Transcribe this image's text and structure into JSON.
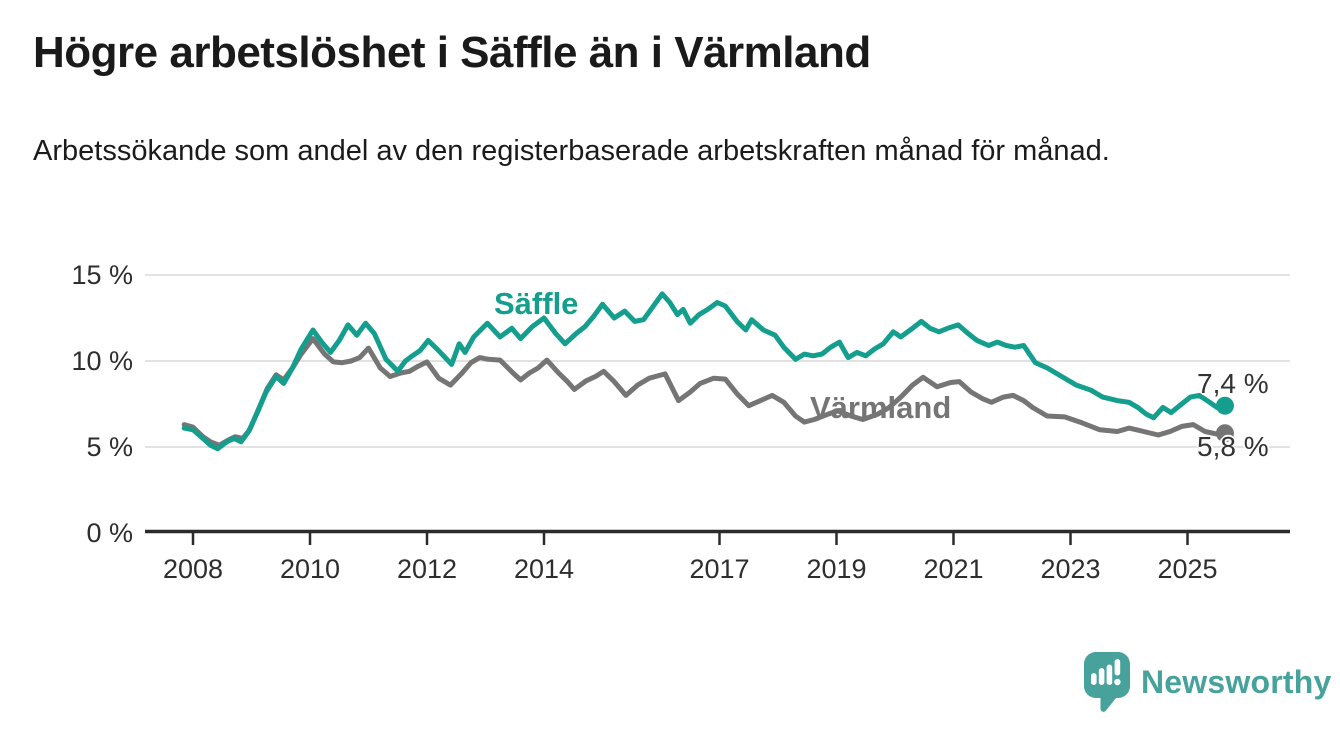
{
  "page": {
    "title": "Högre arbetslöshet i Säffle än i Värmland",
    "subtitle": "Arbetssökande som andel av den registerbaserade arbetskraften månad för månad."
  },
  "branding": {
    "logo_text": "Newsworthy",
    "logo_icon": "speech-bubble-with-bar-chart-and-exclamation",
    "logo_color": "#47a29c"
  },
  "colors": {
    "saffle": "#149e8e",
    "varmland": "#757575",
    "grid": "#e2e2e2",
    "axis": "#2b2b2b",
    "tick_text": "#2e2e2e",
    "title_text": "#1a1a1a",
    "end_label_text": "#333333"
  },
  "chart_data": {
    "type": "line",
    "title": "Högre arbetslöshet i Säffle än i Värmland",
    "subtitle": "Arbetssökande som andel av den registerbaserade arbetskraften månad för månad.",
    "xlabel": "",
    "ylabel": "",
    "x_unit": "decimal_year_monthly",
    "ylim": [
      0,
      15.6
    ],
    "xlim": [
      2007.6,
      2026.4
    ],
    "grid": "horizontal_only",
    "legend_position": "inline_labels_on_lines",
    "x_ticks": [
      {
        "value": 2008,
        "label": "2008"
      },
      {
        "value": 2010,
        "label": "2010"
      },
      {
        "value": 2012,
        "label": "2012"
      },
      {
        "value": 2014,
        "label": "2014"
      },
      {
        "value": 2017,
        "label": "2017"
      },
      {
        "value": 2019,
        "label": "2019"
      },
      {
        "value": 2021,
        "label": "2021"
      },
      {
        "value": 2023,
        "label": "2023"
      },
      {
        "value": 2025,
        "label": "2025"
      }
    ],
    "y_ticks": [
      {
        "value": 0,
        "label": "0 %"
      },
      {
        "value": 5,
        "label": "5 %"
      },
      {
        "value": 10,
        "label": "10 %"
      },
      {
        "value": 15,
        "label": "15 %"
      }
    ],
    "series": [
      {
        "name": "Säffle",
        "color": "#149e8e",
        "end_label": "7,4 %",
        "end_value": 7.4,
        "points": [
          [
            2007.85,
            6.1
          ],
          [
            2008.0,
            6.0
          ],
          [
            2008.17,
            5.5
          ],
          [
            2008.3,
            5.1
          ],
          [
            2008.42,
            4.9
          ],
          [
            2008.58,
            5.3
          ],
          [
            2008.7,
            5.5
          ],
          [
            2008.82,
            5.3
          ],
          [
            2008.95,
            5.9
          ],
          [
            2009.1,
            7.0
          ],
          [
            2009.25,
            8.2
          ],
          [
            2009.42,
            9.1
          ],
          [
            2009.55,
            8.7
          ],
          [
            2009.7,
            9.6
          ],
          [
            2009.85,
            10.7
          ],
          [
            2010.05,
            11.8
          ],
          [
            2010.2,
            11.1
          ],
          [
            2010.35,
            10.5
          ],
          [
            2010.5,
            11.2
          ],
          [
            2010.65,
            12.1
          ],
          [
            2010.8,
            11.5
          ],
          [
            2010.95,
            12.2
          ],
          [
            2011.1,
            11.6
          ],
          [
            2011.3,
            10.1
          ],
          [
            2011.5,
            9.4
          ],
          [
            2011.63,
            10.0
          ],
          [
            2011.75,
            10.3
          ],
          [
            2011.88,
            10.6
          ],
          [
            2012.02,
            11.2
          ],
          [
            2012.2,
            10.6
          ],
          [
            2012.42,
            9.8
          ],
          [
            2012.55,
            11.0
          ],
          [
            2012.65,
            10.5
          ],
          [
            2012.8,
            11.4
          ],
          [
            2013.03,
            12.2
          ],
          [
            2013.25,
            11.4
          ],
          [
            2013.45,
            11.9
          ],
          [
            2013.6,
            11.3
          ],
          [
            2013.8,
            12.0
          ],
          [
            2014.0,
            12.5
          ],
          [
            2014.2,
            11.6
          ],
          [
            2014.36,
            11.0
          ],
          [
            2014.55,
            11.6
          ],
          [
            2014.7,
            12.0
          ],
          [
            2014.85,
            12.6
          ],
          [
            2015.0,
            13.3
          ],
          [
            2015.2,
            12.5
          ],
          [
            2015.38,
            12.9
          ],
          [
            2015.55,
            12.3
          ],
          [
            2015.7,
            12.4
          ],
          [
            2015.85,
            13.1
          ],
          [
            2016.02,
            13.9
          ],
          [
            2016.15,
            13.4
          ],
          [
            2016.28,
            12.7
          ],
          [
            2016.38,
            13.0
          ],
          [
            2016.5,
            12.2
          ],
          [
            2016.65,
            12.7
          ],
          [
            2016.8,
            13.0
          ],
          [
            2016.96,
            13.4
          ],
          [
            2017.1,
            13.2
          ],
          [
            2017.3,
            12.3
          ],
          [
            2017.45,
            11.8
          ],
          [
            2017.55,
            12.4
          ],
          [
            2017.75,
            11.8
          ],
          [
            2017.95,
            11.5
          ],
          [
            2018.1,
            10.8
          ],
          [
            2018.3,
            10.1
          ],
          [
            2018.45,
            10.4
          ],
          [
            2018.6,
            10.3
          ],
          [
            2018.75,
            10.4
          ],
          [
            2018.9,
            10.8
          ],
          [
            2019.05,
            11.1
          ],
          [
            2019.2,
            10.2
          ],
          [
            2019.35,
            10.5
          ],
          [
            2019.5,
            10.3
          ],
          [
            2019.65,
            10.7
          ],
          [
            2019.8,
            11.0
          ],
          [
            2019.97,
            11.7
          ],
          [
            2020.1,
            11.4
          ],
          [
            2020.3,
            11.9
          ],
          [
            2020.45,
            12.3
          ],
          [
            2020.6,
            11.9
          ],
          [
            2020.75,
            11.7
          ],
          [
            2020.9,
            11.9
          ],
          [
            2021.08,
            12.1
          ],
          [
            2021.25,
            11.6
          ],
          [
            2021.4,
            11.2
          ],
          [
            2021.6,
            10.9
          ],
          [
            2021.75,
            11.1
          ],
          [
            2021.9,
            10.9
          ],
          [
            2022.05,
            10.8
          ],
          [
            2022.2,
            10.9
          ],
          [
            2022.4,
            9.9
          ],
          [
            2022.6,
            9.6
          ],
          [
            2022.85,
            9.1
          ],
          [
            2023.1,
            8.6
          ],
          [
            2023.35,
            8.3
          ],
          [
            2023.55,
            7.9
          ],
          [
            2023.8,
            7.7
          ],
          [
            2024.0,
            7.6
          ],
          [
            2024.15,
            7.3
          ],
          [
            2024.3,
            6.9
          ],
          [
            2024.42,
            6.7
          ],
          [
            2024.58,
            7.3
          ],
          [
            2024.72,
            7.0
          ],
          [
            2024.9,
            7.5
          ],
          [
            2025.05,
            7.9
          ],
          [
            2025.2,
            8.0
          ],
          [
            2025.38,
            7.6
          ],
          [
            2025.5,
            7.3
          ],
          [
            2025.64,
            7.4
          ]
        ]
      },
      {
        "name": "Värmland",
        "color": "#757575",
        "end_label": "5,8 %",
        "end_value": 5.8,
        "points": [
          [
            2007.85,
            6.3
          ],
          [
            2008.0,
            6.15
          ],
          [
            2008.17,
            5.6
          ],
          [
            2008.3,
            5.3
          ],
          [
            2008.45,
            5.1
          ],
          [
            2008.6,
            5.4
          ],
          [
            2008.72,
            5.6
          ],
          [
            2008.85,
            5.5
          ],
          [
            2008.97,
            6.0
          ],
          [
            2009.12,
            7.2
          ],
          [
            2009.27,
            8.4
          ],
          [
            2009.42,
            9.2
          ],
          [
            2009.55,
            8.9
          ],
          [
            2009.7,
            9.6
          ],
          [
            2009.85,
            10.4
          ],
          [
            2010.05,
            11.3
          ],
          [
            2010.25,
            10.4
          ],
          [
            2010.4,
            9.95
          ],
          [
            2010.55,
            9.9
          ],
          [
            2010.7,
            10.0
          ],
          [
            2010.85,
            10.2
          ],
          [
            2011.0,
            10.75
          ],
          [
            2011.2,
            9.6
          ],
          [
            2011.37,
            9.1
          ],
          [
            2011.55,
            9.3
          ],
          [
            2011.7,
            9.4
          ],
          [
            2011.85,
            9.7
          ],
          [
            2012.0,
            9.95
          ],
          [
            2012.2,
            9.0
          ],
          [
            2012.4,
            8.6
          ],
          [
            2012.6,
            9.3
          ],
          [
            2012.75,
            9.9
          ],
          [
            2012.9,
            10.2
          ],
          [
            2013.05,
            10.1
          ],
          [
            2013.25,
            10.05
          ],
          [
            2013.47,
            9.3
          ],
          [
            2013.6,
            8.9
          ],
          [
            2013.75,
            9.3
          ],
          [
            2013.9,
            9.6
          ],
          [
            2014.05,
            10.05
          ],
          [
            2014.25,
            9.3
          ],
          [
            2014.4,
            8.8
          ],
          [
            2014.52,
            8.35
          ],
          [
            2014.72,
            8.85
          ],
          [
            2014.88,
            9.1
          ],
          [
            2015.02,
            9.4
          ],
          [
            2015.2,
            8.8
          ],
          [
            2015.4,
            8.0
          ],
          [
            2015.6,
            8.6
          ],
          [
            2015.8,
            9.0
          ],
          [
            2016.07,
            9.25
          ],
          [
            2016.3,
            7.7
          ],
          [
            2016.5,
            8.2
          ],
          [
            2016.67,
            8.7
          ],
          [
            2016.9,
            9.0
          ],
          [
            2017.1,
            8.95
          ],
          [
            2017.3,
            8.1
          ],
          [
            2017.5,
            7.4
          ],
          [
            2017.7,
            7.7
          ],
          [
            2017.9,
            8.0
          ],
          [
            2018.1,
            7.6
          ],
          [
            2018.3,
            6.8
          ],
          [
            2018.45,
            6.45
          ],
          [
            2018.62,
            6.6
          ],
          [
            2018.85,
            6.9
          ],
          [
            2019.02,
            7.1
          ],
          [
            2019.25,
            6.8
          ],
          [
            2019.45,
            6.6
          ],
          [
            2019.7,
            6.9
          ],
          [
            2019.9,
            7.3
          ],
          [
            2020.1,
            7.9
          ],
          [
            2020.3,
            8.6
          ],
          [
            2020.48,
            9.05
          ],
          [
            2020.72,
            8.5
          ],
          [
            2020.95,
            8.75
          ],
          [
            2021.1,
            8.8
          ],
          [
            2021.3,
            8.2
          ],
          [
            2021.5,
            7.8
          ],
          [
            2021.65,
            7.6
          ],
          [
            2021.85,
            7.9
          ],
          [
            2022.02,
            8.0
          ],
          [
            2022.2,
            7.7
          ],
          [
            2022.35,
            7.3
          ],
          [
            2022.6,
            6.8
          ],
          [
            2022.9,
            6.75
          ],
          [
            2023.2,
            6.4
          ],
          [
            2023.5,
            6.0
          ],
          [
            2023.8,
            5.9
          ],
          [
            2024.0,
            6.1
          ],
          [
            2024.25,
            5.9
          ],
          [
            2024.5,
            5.7
          ],
          [
            2024.7,
            5.9
          ],
          [
            2024.9,
            6.2
          ],
          [
            2025.1,
            6.3
          ],
          [
            2025.3,
            5.9
          ],
          [
            2025.5,
            5.75
          ],
          [
            2025.64,
            5.8
          ]
        ]
      }
    ]
  }
}
